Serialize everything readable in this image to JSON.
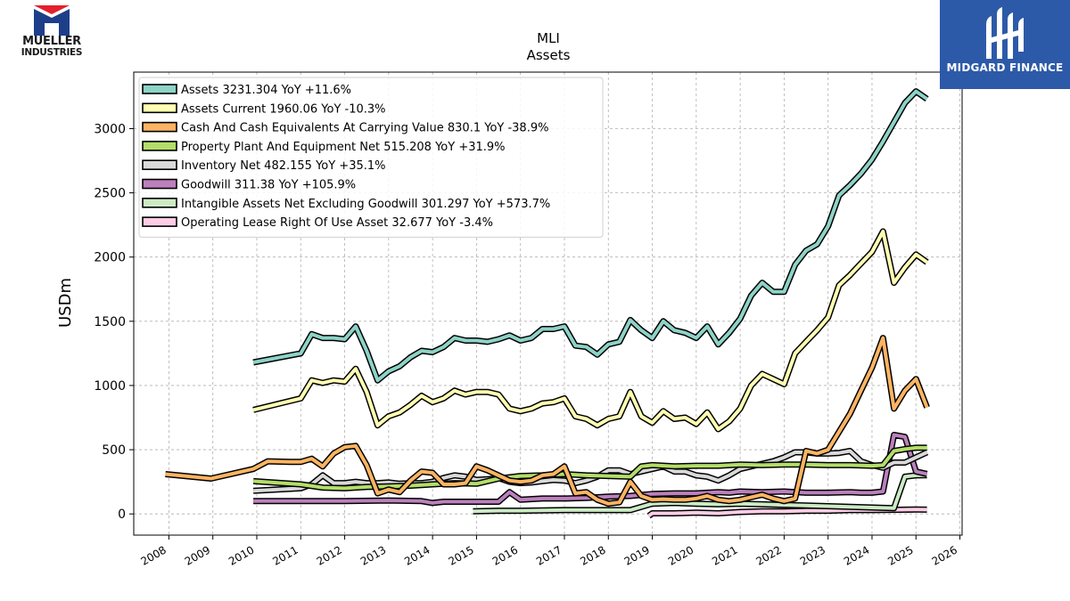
{
  "brand_left": {
    "line1": "MUELLER",
    "line2": "INDUSTRIES",
    "colors": {
      "red": "#e2202e",
      "blue": "#1d3f8a"
    }
  },
  "brand_right": {
    "name": "MIDGARD FINANCE",
    "background": "#2d5aa8"
  },
  "chart_data": {
    "type": "line",
    "title": "MLI",
    "subtitle": "Assets",
    "ylabel": "USDm",
    "xlabel": "",
    "xlim": [
      2007.2,
      2026.05
    ],
    "ylim": [
      -165,
      3440
    ],
    "x_ticks": [
      2008,
      2009,
      2010,
      2011,
      2012,
      2013,
      2014,
      2015,
      2016,
      2017,
      2018,
      2019,
      2020,
      2021,
      2022,
      2023,
      2024,
      2025,
      2026
    ],
    "y_ticks": [
      0,
      500,
      1000,
      1500,
      2000,
      2500,
      3000
    ],
    "grid": true,
    "legend_position": "top-left",
    "series": [
      {
        "name": "Assets",
        "legend": "Assets  3231.304 YoY +11.6%",
        "color": "#8dd3c7",
        "x": [
          2009.92,
          2011.0,
          2011.25,
          2011.5,
          2011.75,
          2012.0,
          2012.25,
          2012.5,
          2012.75,
          2013.0,
          2013.25,
          2013.5,
          2013.75,
          2014.0,
          2014.25,
          2014.5,
          2014.75,
          2015.0,
          2015.25,
          2015.5,
          2015.75,
          2016.0,
          2016.25,
          2016.5,
          2016.75,
          2017.0,
          2017.25,
          2017.5,
          2017.75,
          2018.0,
          2018.25,
          2018.5,
          2018.75,
          2019.0,
          2019.25,
          2019.5,
          2019.75,
          2020.0,
          2020.25,
          2020.5,
          2020.75,
          2021.0,
          2021.25,
          2021.5,
          2021.75,
          2022.0,
          2022.25,
          2022.5,
          2022.75,
          2023.0,
          2023.25,
          2023.5,
          2023.75,
          2024.0,
          2024.25,
          2024.5,
          2024.75,
          2025.0,
          2025.25
        ],
        "y": [
          1180,
          1250,
          1400,
          1370,
          1370,
          1360,
          1460,
          1270,
          1040,
          1110,
          1150,
          1220,
          1270,
          1260,
          1300,
          1370,
          1350,
          1350,
          1340,
          1360,
          1390,
          1350,
          1370,
          1440,
          1440,
          1460,
          1310,
          1300,
          1240,
          1320,
          1340,
          1510,
          1430,
          1370,
          1500,
          1430,
          1410,
          1370,
          1460,
          1320,
          1410,
          1520,
          1700,
          1800,
          1730,
          1730,
          1940,
          2050,
          2100,
          2240,
          2480,
          2560,
          2650,
          2760,
          2900,
          3050,
          3200,
          3290,
          3231
        ]
      },
      {
        "name": "Assets Current",
        "legend": "Assets Current  1960.06 YoY -10.3%",
        "color": "#ffffb3",
        "x": [
          2009.92,
          2011.0,
          2011.25,
          2011.5,
          2011.75,
          2012.0,
          2012.25,
          2012.5,
          2012.75,
          2013.0,
          2013.25,
          2013.5,
          2013.75,
          2014.0,
          2014.25,
          2014.5,
          2014.75,
          2015.0,
          2015.25,
          2015.5,
          2015.75,
          2016.0,
          2016.25,
          2016.5,
          2016.75,
          2017.0,
          2017.25,
          2017.5,
          2017.75,
          2018.0,
          2018.25,
          2018.5,
          2018.75,
          2019.0,
          2019.25,
          2019.5,
          2019.75,
          2020.0,
          2020.25,
          2020.5,
          2020.75,
          2021.0,
          2021.25,
          2021.5,
          2021.75,
          2022.0,
          2022.25,
          2022.5,
          2022.75,
          2023.0,
          2023.25,
          2023.5,
          2023.75,
          2024.0,
          2024.25,
          2024.5,
          2024.75,
          2025.0,
          2025.25
        ],
        "y": [
          810,
          900,
          1040,
          1020,
          1040,
          1030,
          1130,
          950,
          690,
          760,
          790,
          850,
          920,
          870,
          900,
          960,
          930,
          950,
          950,
          930,
          820,
          800,
          820,
          860,
          870,
          900,
          760,
          740,
          690,
          740,
          760,
          950,
          760,
          710,
          800,
          740,
          750,
          700,
          790,
          660,
          720,
          820,
          1000,
          1090,
          1050,
          1010,
          1250,
          1340,
          1430,
          1530,
          1780,
          1860,
          1950,
          2040,
          2200,
          1800,
          1920,
          2020,
          1960
        ]
      },
      {
        "name": "Cash And Cash Equivalents At Carrying Value",
        "legend": "Cash And Cash Equivalents At Carrying Value  830.1 YoY -38.9%",
        "color": "#fdb462",
        "x": [
          2007.92,
          2008.96,
          2009.92,
          2010.25,
          2010.75,
          2011.0,
          2011.25,
          2011.5,
          2011.75,
          2012.0,
          2012.25,
          2012.5,
          2012.75,
          2013.0,
          2013.25,
          2013.5,
          2013.75,
          2014.0,
          2014.25,
          2014.5,
          2014.75,
          2015.0,
          2015.25,
          2015.5,
          2015.75,
          2016.0,
          2016.25,
          2016.5,
          2016.75,
          2017.0,
          2017.25,
          2017.5,
          2017.75,
          2018.0,
          2018.25,
          2018.5,
          2018.75,
          2019.0,
          2019.25,
          2019.5,
          2019.75,
          2020.0,
          2020.25,
          2020.5,
          2020.75,
          2021.0,
          2021.25,
          2021.5,
          2021.75,
          2022.0,
          2022.25,
          2022.5,
          2022.75,
          2023.0,
          2023.25,
          2023.5,
          2023.75,
          2024.0,
          2024.25,
          2024.5,
          2024.75,
          2025.0,
          2025.25
        ],
        "y": [
          310,
          275,
          350,
          410,
          405,
          405,
          430,
          370,
          470,
          520,
          530,
          380,
          160,
          190,
          170,
          260,
          330,
          320,
          230,
          230,
          240,
          370,
          340,
          300,
          260,
          250,
          260,
          300,
          310,
          370,
          160,
          170,
          110,
          80,
          90,
          250,
          140,
          110,
          115,
          110,
          110,
          120,
          140,
          110,
          100,
          110,
          130,
          150,
          120,
          100,
          120,
          490,
          470,
          500,
          640,
          780,
          960,
          1140,
          1370,
          820,
          960,
          1050,
          830
        ]
      },
      {
        "name": "Property Plant And Equipment Net",
        "legend": "Property Plant And Equipment Net  515.208 YoY +31.9%",
        "color": "#b3de69",
        "x": [
          2009.92,
          2011.0,
          2011.5,
          2012.0,
          2012.5,
          2013.0,
          2013.5,
          2014.0,
          2014.5,
          2015.0,
          2015.5,
          2016.0,
          2016.5,
          2017.0,
          2017.5,
          2018.0,
          2018.5,
          2018.75,
          2019.0,
          2019.5,
          2020.0,
          2020.5,
          2021.0,
          2021.5,
          2022.0,
          2022.5,
          2023.0,
          2023.5,
          2024.0,
          2024.25,
          2024.5,
          2024.75,
          2025.0,
          2025.25
        ],
        "y": [
          255,
          230,
          205,
          200,
          210,
          215,
          220,
          230,
          240,
          235,
          275,
          295,
          300,
          310,
          300,
          295,
          290,
          370,
          380,
          370,
          375,
          375,
          385,
          380,
          385,
          385,
          380,
          380,
          375,
          380,
          490,
          505,
          515,
          515
        ]
      },
      {
        "name": "Inventory Net",
        "legend": "Inventory Net  482.155 YoY +35.1%",
        "color": "#d9d9d9",
        "x": [
          2009.92,
          2011.0,
          2011.25,
          2011.5,
          2011.75,
          2012.0,
          2012.25,
          2012.5,
          2012.75,
          2013.0,
          2013.25,
          2013.5,
          2013.75,
          2014.0,
          2014.25,
          2014.5,
          2014.75,
          2015.0,
          2015.25,
          2015.5,
          2015.75,
          2016.0,
          2016.25,
          2016.5,
          2016.75,
          2017.0,
          2017.25,
          2017.5,
          2017.75,
          2018.0,
          2018.25,
          2018.5,
          2018.75,
          2019.0,
          2019.25,
          2019.5,
          2019.75,
          2020.0,
          2020.25,
          2020.5,
          2020.75,
          2021.0,
          2021.25,
          2021.5,
          2021.75,
          2022.0,
          2022.25,
          2022.5,
          2022.75,
          2023.0,
          2023.25,
          2023.5,
          2023.75,
          2024.0,
          2024.25,
          2024.5,
          2024.75,
          2025.0,
          2025.25
        ],
        "y": [
          180,
          200,
          230,
          300,
          240,
          240,
          250,
          240,
          240,
          245,
          235,
          240,
          240,
          250,
          280,
          300,
          290,
          265,
          270,
          280,
          250,
          240,
          245,
          255,
          265,
          260,
          240,
          260,
          290,
          340,
          340,
          310,
          330,
          350,
          370,
          330,
          330,
          300,
          290,
          260,
          300,
          350,
          370,
          390,
          410,
          440,
          480,
          480,
          470,
          470,
          475,
          490,
          410,
          380,
          360,
          400,
          400,
          440,
          480
        ]
      },
      {
        "name": "Goodwill",
        "legend": "Goodwill  311.38 YoY +105.9%",
        "color": "#bc80bd",
        "x": [
          2009.92,
          2011.0,
          2012.0,
          2013.0,
          2013.75,
          2014.0,
          2014.25,
          2014.5,
          2014.75,
          2015.0,
          2015.5,
          2015.75,
          2016.0,
          2016.5,
          2017.0,
          2017.5,
          2018.0,
          2018.5,
          2019.0,
          2019.5,
          2020.0,
          2020.25,
          2020.5,
          2020.75,
          2021.0,
          2021.5,
          2022.0,
          2022.5,
          2023.0,
          2023.5,
          2023.75,
          2024.0,
          2024.25,
          2024.5,
          2024.75,
          2025.0,
          2025.25
        ],
        "y": [
          100,
          100,
          100,
          105,
          100,
          85,
          95,
          95,
          95,
          95,
          95,
          170,
          110,
          120,
          120,
          125,
          135,
          140,
          155,
          160,
          160,
          165,
          170,
          165,
          175,
          170,
          175,
          165,
          165,
          170,
          165,
          165,
          175,
          615,
          600,
          330,
          311
        ]
      },
      {
        "name": "Intangible Assets Net Excluding Goodwill",
        "legend": "Intangible Assets Net Excluding Goodwill  301.297 YoY +573.7%",
        "color": "#ccebc5",
        "x": [
          2014.92,
          2015.5,
          2016.0,
          2016.5,
          2017.0,
          2017.5,
          2018.0,
          2018.5,
          2019.0,
          2019.5,
          2020.0,
          2020.5,
          2021.0,
          2021.5,
          2022.0,
          2022.5,
          2023.0,
          2023.5,
          2024.0,
          2024.5,
          2024.75,
          2025.0,
          2025.25
        ],
        "y": [
          20,
          25,
          25,
          28,
          30,
          30,
          30,
          30,
          80,
          85,
          80,
          75,
          80,
          75,
          70,
          65,
          60,
          55,
          50,
          45,
          290,
          300,
          301
        ]
      },
      {
        "name": "Operating Lease Right Of Use Asset",
        "legend": "Operating Lease Right Of Use Asset  32.677 YoY -3.4%",
        "color": "#fccde5",
        "x": [
          2018.92,
          2019.0,
          2019.5,
          2020.0,
          2020.5,
          2021.0,
          2021.5,
          2022.0,
          2022.5,
          2023.0,
          2023.5,
          2024.0,
          2024.5,
          2025.0,
          2025.25
        ],
        "y": [
          -15,
          5,
          5,
          10,
          5,
          15,
          20,
          20,
          25,
          25,
          30,
          30,
          32,
          34,
          33
        ]
      }
    ]
  }
}
